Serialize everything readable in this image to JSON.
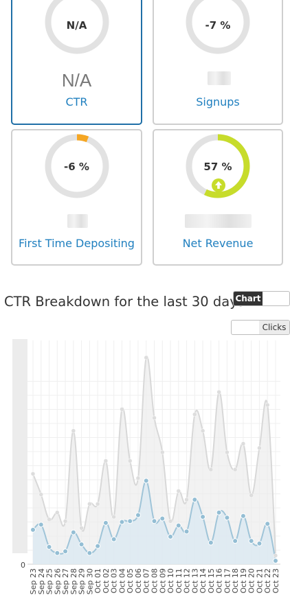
{
  "cards": [
    {
      "ring_text": "N/A",
      "value": "N/A",
      "label": "CTR",
      "ring_fraction": 0
    },
    {
      "ring_text": "-7 %",
      "label": "Signups",
      "ring_fraction": 0.07
    },
    {
      "ring_text": "-6 %",
      "label": "First Time Depositing",
      "ring_fraction": 0.06
    },
    {
      "ring_text": "57 %",
      "label": "Net Revenue",
      "ring_fraction": 0.57
    }
  ],
  "colors": {
    "negative": "#f5a623",
    "positive": "#c7dc2b",
    "ring_track": "#e2e2e2",
    "link": "#1f7fbf"
  },
  "breakdown": {
    "title": "CTR Breakdown for the last 30 days",
    "view_toggle": "Chart",
    "metric_toggle": "Clicks"
  },
  "chart_data": {
    "type": "area",
    "categories": [
      "Sep 23",
      "Sep 24",
      "Sep 25",
      "Sep 26",
      "Sep 27",
      "Sep 28",
      "Sep 29",
      "Sep 30",
      "Oct 01",
      "Oct 02",
      "Oct 03",
      "Oct 04",
      "Oct 05",
      "Oct 06",
      "Oct 07",
      "Oct 08",
      "Oct 09",
      "Oct 10",
      "Oct 11",
      "Oct 12",
      "Oct 13",
      "Oct 14",
      "Oct 15",
      "Oct 16",
      "Oct 17",
      "Oct 18",
      "Oct 19",
      "Oct 20",
      "Oct 21",
      "Oct 22",
      "Oct 23"
    ],
    "series": [
      {
        "values": [
          105,
          81,
          52,
          60,
          50,
          155,
          42,
          70,
          70,
          120,
          55,
          180,
          120,
          100,
          240,
          170,
          130,
          50,
          85,
          75,
          174,
          155,
          110,
          200,
          130,
          110,
          140,
          80,
          135,
          185,
          10
        ]
      },
      {
        "values": [
          40,
          46,
          20,
          13,
          15,
          37,
          23,
          13,
          21,
          48,
          29,
          49,
          50,
          57,
          97,
          50,
          53,
          32,
          45,
          38,
          75,
          55,
          25,
          60,
          54,
          27,
          56,
          27,
          24,
          47,
          4
        ]
      }
    ],
    "y_tick_labels": [
      "0"
    ],
    "ylim": [
      0,
      260
    ],
    "grid": true
  }
}
